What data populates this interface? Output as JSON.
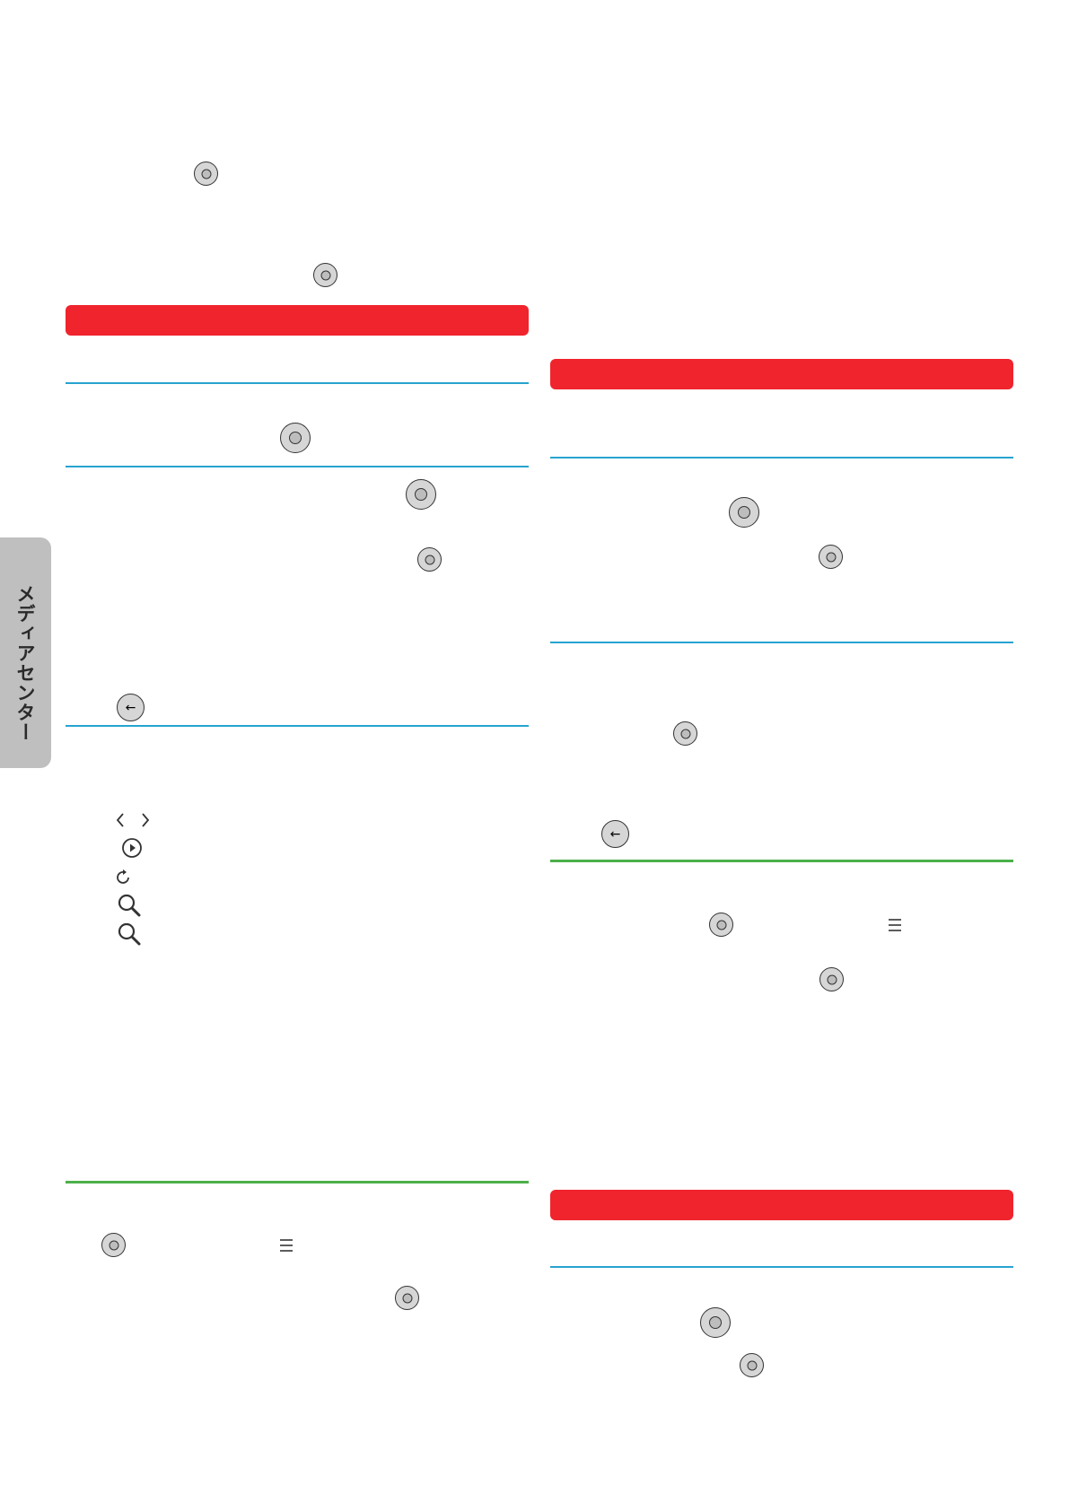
{
  "colors": {
    "section_bar_red": "#f0242d",
    "divider_blue": "#27a3d0",
    "divider_green": "#4cb04a",
    "side_tab_gray": "#bfbfbf",
    "button_fill": "#d6d6d6",
    "button_stroke": "#333333"
  },
  "side_tab": {
    "label": "メディアセンター"
  },
  "icons": {
    "ok_button": "ok-button-icon",
    "back_button": "back-arrow-icon",
    "chevrons": "chevron-left-right-icon",
    "play": "play-circle-icon",
    "refresh": "refresh-icon",
    "zoom": "magnifier-icon",
    "menu": "menu-lines-icon"
  },
  "glyphs": {
    "back_arrow": "←",
    "chevron_left": "‹",
    "chevron_right": "›",
    "play": "▶",
    "refresh": "↻",
    "menu": "☰"
  }
}
